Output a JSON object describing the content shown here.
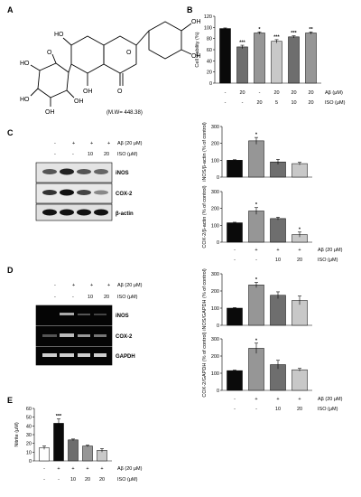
{
  "colors": {
    "black": "#0a0a0a",
    "dark_gray": "#6e6e6e",
    "light_gray": "#c8c8c8",
    "mid_gray": "#969696",
    "white": "#ffffff"
  },
  "panel_labels": [
    "A",
    "B",
    "C",
    "D",
    "E"
  ],
  "molecule": {
    "mw_label": "(M.W= 448.38)"
  },
  "common": {
    "ab_label": "Aβ (20 μM)",
    "ab_unit_label": "Aβ (μM)",
    "iso_label": "ISO (μM)",
    "blots_row_ab": [
      "-",
      "+",
      "+",
      "+"
    ],
    "blots_row_iso": [
      "-",
      "-",
      "10",
      "20"
    ]
  },
  "blots": {
    "C": [
      "iNOS",
      "COX-2",
      "β-actin"
    ],
    "D": [
      "iNOS",
      "COX-2",
      "GAPDH"
    ]
  },
  "chart_data": [
    {
      "panel": "B",
      "type": "bar",
      "ylabel": "Cell viability (%)",
      "ylim": [
        0,
        120
      ],
      "yticks": [
        0,
        20,
        40,
        60,
        80,
        100,
        120
      ],
      "values": [
        98,
        65,
        90,
        75,
        83,
        90
      ],
      "errors": [
        1,
        3,
        2,
        3,
        2,
        2
      ],
      "colors": [
        "#0a0a0a",
        "#6e6e6e",
        "#969696",
        "#c8c8c8",
        "#6e6e6e",
        "#969696"
      ],
      "annotations": [
        "",
        "***",
        "*",
        "***",
        "***",
        "**"
      ],
      "row1": [
        "-",
        "20",
        "-",
        "20",
        "20",
        "20"
      ],
      "row2": [
        "-",
        "-",
        "20",
        "5",
        "10",
        "20"
      ]
    },
    {
      "panel": "C-iNOS",
      "type": "bar",
      "ylabel": "iNOS/β-actin (% of control)",
      "ylim": [
        0,
        300
      ],
      "yticks": [
        0,
        100,
        200,
        300
      ],
      "values": [
        100,
        215,
        90,
        80
      ],
      "errors": [
        3,
        20,
        15,
        8
      ],
      "colors": [
        "#0a0a0a",
        "#969696",
        "#6e6e6e",
        "#c8c8c8"
      ],
      "annotations": [
        "",
        "*",
        "",
        ""
      ]
    },
    {
      "panel": "C-COX2",
      "type": "bar",
      "ylabel": "COX-2/β-actin (% of control)",
      "ylim": [
        0,
        300
      ],
      "yticks": [
        0,
        100,
        200,
        300
      ],
      "values": [
        115,
        185,
        140,
        45
      ],
      "errors": [
        3,
        20,
        8,
        15
      ],
      "colors": [
        "#0a0a0a",
        "#969696",
        "#6e6e6e",
        "#c8c8c8"
      ],
      "annotations": [
        "",
        "*",
        "",
        "*"
      ],
      "row1": [
        "-",
        "+",
        "+",
        "+"
      ],
      "row2": [
        "-",
        "-",
        "10",
        "20"
      ]
    },
    {
      "panel": "D-iNOS",
      "type": "bar",
      "ylabel": "iNOS/GAPDH (% of control)",
      "ylim": [
        0,
        300
      ],
      "yticks": [
        0,
        100,
        200,
        300
      ],
      "values": [
        100,
        235,
        175,
        145
      ],
      "errors": [
        3,
        15,
        20,
        25
      ],
      "colors": [
        "#0a0a0a",
        "#969696",
        "#6e6e6e",
        "#c8c8c8"
      ],
      "annotations": [
        "",
        "*",
        "",
        ""
      ]
    },
    {
      "panel": "D-COX2",
      "type": "bar",
      "ylabel": "COX-2/GAPDH (% of control)",
      "ylim": [
        0,
        300
      ],
      "yticks": [
        0,
        100,
        200,
        300
      ],
      "values": [
        115,
        245,
        150,
        120
      ],
      "errors": [
        3,
        30,
        25,
        8
      ],
      "colors": [
        "#0a0a0a",
        "#969696",
        "#6e6e6e",
        "#c8c8c8"
      ],
      "annotations": [
        "",
        "*",
        "",
        ""
      ],
      "row1": [
        "-",
        "+",
        "+",
        "+"
      ],
      "row2": [
        "-",
        "-",
        "10",
        "20"
      ]
    },
    {
      "panel": "E",
      "type": "bar",
      "ylabel": "Nitrite (μM)",
      "ylim": [
        0,
        60
      ],
      "yticks": [
        0,
        10,
        20,
        30,
        40,
        50,
        60
      ],
      "values": [
        15,
        43,
        24,
        17,
        12
      ],
      "errors": [
        2,
        5,
        1,
        1,
        2
      ],
      "colors": [
        "#ffffff",
        "#0a0a0a",
        "#6e6e6e",
        "#969696",
        "#c8c8c8"
      ],
      "annotations": [
        "",
        "***",
        "",
        "",
        ""
      ],
      "row1": [
        "-",
        "+",
        "+",
        "+",
        "+"
      ],
      "row2": [
        "-",
        "-",
        "10",
        "20",
        "20"
      ]
    }
  ]
}
